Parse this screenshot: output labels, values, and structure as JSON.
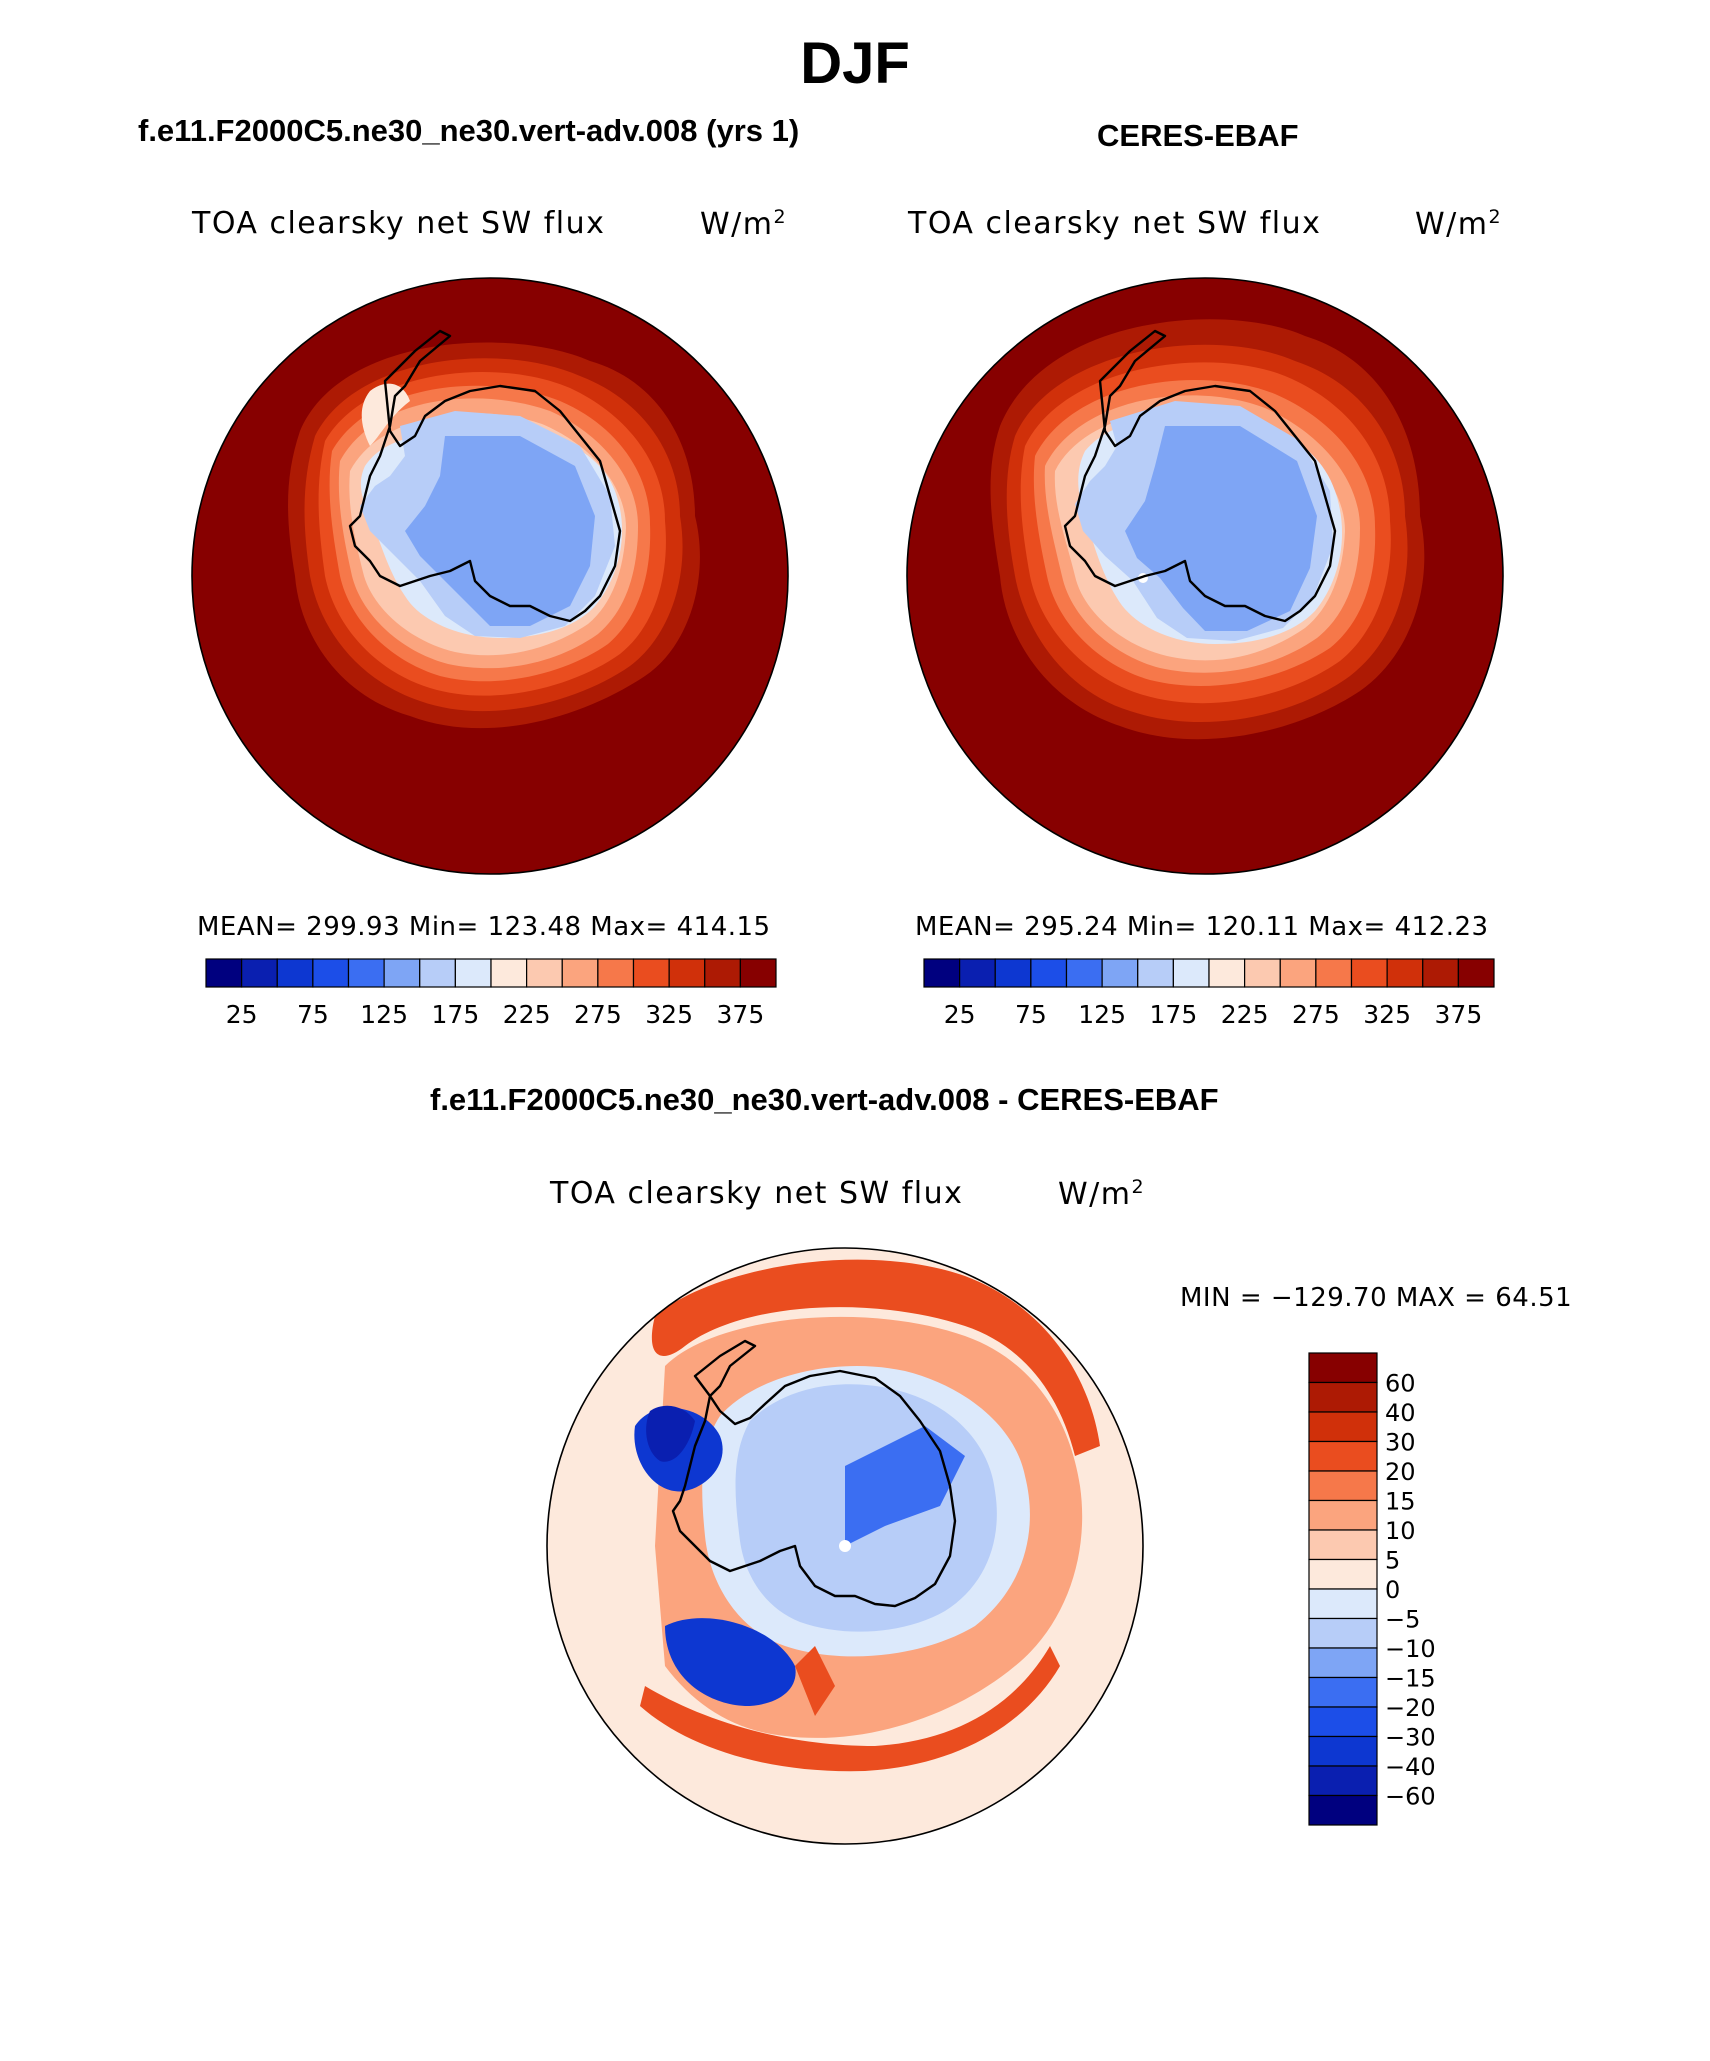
{
  "page": {
    "title": "DJF",
    "difference_title": "f.e11.F2000C5.ne30_ne30.vert-adv.008 - CERES-EBAF"
  },
  "panels": [
    {
      "id": "model",
      "case_title": "f.e11.F2000C5.ne30_ne30.vert-adv.008 (yrs 1)",
      "plot_title": "TOA clearsky net SW flux",
      "units_base": "W/m",
      "units_exp": "2",
      "stats": {
        "mean": "299.93",
        "min": "123.48",
        "max": "414.15"
      },
      "stats_text": "MEAN= 299.93   Min= 123.48   Max= 414.15"
    },
    {
      "id": "obs",
      "case_title": "CERES-EBAF",
      "plot_title": "TOA clearsky net SW flux",
      "units_base": "W/m",
      "units_exp": "2",
      "stats": {
        "mean": "295.24",
        "min": "120.11",
        "max": "412.23"
      },
      "stats_text": "MEAN= 295.24   Min= 120.11   Max= 412.23"
    }
  ],
  "difference": {
    "plot_title": "TOA clearsky net SW flux",
    "units_base": "W/m",
    "units_exp": "2",
    "min": "-129.70",
    "max": "64.51",
    "minmax_text": "MIN = −129.70 MAX =   64.51"
  },
  "chart_data": [
    {
      "type": "heatmap",
      "projection": "south-polar-stereographic",
      "title": "TOA clearsky net SW flux",
      "units": "W/m2",
      "case": "f.e11.F2000C5.ne30_ne30.vert-adv.008 (yrs 1)",
      "mean": 299.93,
      "min": 123.48,
      "max": 414.15,
      "levels": [
        25,
        50,
        75,
        100,
        125,
        150,
        175,
        200,
        225,
        250,
        275,
        300,
        325,
        350,
        375
      ],
      "tick_labels": [
        "25",
        "75",
        "125",
        "175",
        "225",
        "275",
        "325",
        "375"
      ],
      "colors": [
        "#00007f",
        "#0a1fb0",
        "#0d37d1",
        "#1c4ee8",
        "#3b6ef2",
        "#7ea5f5",
        "#b7cdf8",
        "#dce9fb",
        "#fde9dc",
        "#fcc9b0",
        "#fba47e",
        "#f6784a",
        "#ea4d1f",
        "#d0300a",
        "#ad1a04",
        "#870000"
      ]
    },
    {
      "type": "heatmap",
      "projection": "south-polar-stereographic",
      "title": "TOA clearsky net SW flux",
      "units": "W/m2",
      "case": "CERES-EBAF",
      "mean": 295.24,
      "min": 120.11,
      "max": 412.23,
      "levels": [
        25,
        50,
        75,
        100,
        125,
        150,
        175,
        200,
        225,
        250,
        275,
        300,
        325,
        350,
        375
      ],
      "tick_labels": [
        "25",
        "75",
        "125",
        "175",
        "225",
        "275",
        "325",
        "375"
      ],
      "colors": [
        "#00007f",
        "#0a1fb0",
        "#0d37d1",
        "#1c4ee8",
        "#3b6ef2",
        "#7ea5f5",
        "#b7cdf8",
        "#dce9fb",
        "#fde9dc",
        "#fcc9b0",
        "#fba47e",
        "#f6784a",
        "#ea4d1f",
        "#d0300a",
        "#ad1a04",
        "#870000"
      ]
    },
    {
      "type": "heatmap",
      "projection": "south-polar-stereographic",
      "title": "TOA clearsky net SW flux",
      "units": "W/m2",
      "case": "f.e11.F2000C5.ne30_ne30.vert-adv.008 - CERES-EBAF",
      "min": -129.7,
      "max": 64.51,
      "levels": [
        -60,
        -40,
        -30,
        -20,
        -15,
        -10,
        -5,
        0,
        5,
        10,
        15,
        20,
        30,
        40,
        60
      ],
      "tick_labels": [
        "60",
        "40",
        "30",
        "20",
        "15",
        "10",
        "5",
        "0",
        "−5",
        "−10",
        "−15",
        "−20",
        "−30",
        "−40",
        "−60"
      ],
      "colors_top_to_bottom": [
        "#870000",
        "#ad1a04",
        "#d0300a",
        "#ea4d1f",
        "#f6784a",
        "#fba47e",
        "#fcc9b0",
        "#fde9dc",
        "#dce9fb",
        "#b7cdf8",
        "#7ea5f5",
        "#3b6ef2",
        "#1c4ee8",
        "#0d37d1",
        "#0a1fb0",
        "#00007f"
      ]
    }
  ]
}
